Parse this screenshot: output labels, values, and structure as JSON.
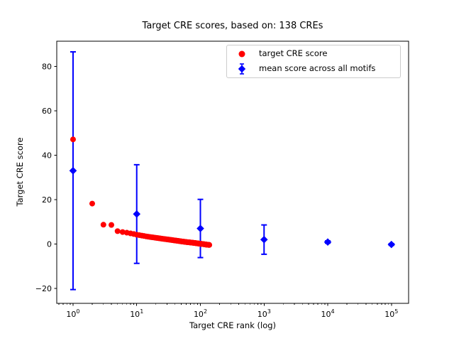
{
  "figure": {
    "title": "Target CRE scores, based on: 138 CREs",
    "xlabel": "Target CRE rank (log)",
    "ylabel": "Target CRE score",
    "background": "#ffffff"
  },
  "colors": {
    "target": "#ff0000",
    "mean": "#0000ff",
    "axis": "#000000",
    "legend_border": "#cccccc"
  },
  "legend": {
    "items": [
      {
        "label": "target CRE score",
        "marker": "circle-icon",
        "color": "#ff0000"
      },
      {
        "label": "mean score across all motifs",
        "marker": "diamond-errorbar-icon",
        "color": "#0000ff"
      }
    ]
  },
  "axes": {
    "x_scale": "log",
    "x_tick_base": "10",
    "x_tick_exponents": [
      0,
      1,
      2,
      3,
      4,
      5
    ],
    "y_ticks": [
      -20,
      0,
      20,
      40,
      60,
      80
    ],
    "xlim_log10": [
      -0.256,
      5.27
    ],
    "ylim": [
      -26.7,
      91.3
    ],
    "grid": false
  },
  "chart_data": {
    "type": "scatter",
    "title": "Target CRE scores, based on: 138 CREs",
    "xlabel": "Target CRE rank (log)",
    "ylabel": "Target CRE score",
    "x_scale": "log",
    "n_points_target_series": 138,
    "legend_position": "upper right",
    "series": [
      {
        "name": "target CRE score",
        "marker": "circle",
        "color": "#ff0000",
        "note": "138 points at ranks 1..138; smooth decaying curve, anchors read from plot",
        "anchors_rank_score": [
          [
            1,
            47.1
          ],
          [
            2,
            18.2
          ],
          [
            3,
            8.7
          ],
          [
            4,
            8.6
          ],
          [
            5,
            5.8
          ],
          [
            6,
            5.4
          ],
          [
            7,
            5.1
          ],
          [
            8,
            4.8
          ],
          [
            9,
            4.5
          ],
          [
            10,
            4.2
          ],
          [
            12,
            3.8
          ],
          [
            15,
            3.3
          ],
          [
            20,
            2.8
          ],
          [
            25,
            2.4
          ],
          [
            30,
            2.1
          ],
          [
            40,
            1.6
          ],
          [
            50,
            1.2
          ],
          [
            60,
            0.9
          ],
          [
            70,
            0.7
          ],
          [
            80,
            0.5
          ],
          [
            90,
            0.3
          ],
          [
            100,
            0.1
          ],
          [
            110,
            0.0
          ],
          [
            120,
            -0.2
          ],
          [
            138,
            -0.4
          ]
        ]
      },
      {
        "name": "mean score across all motifs",
        "marker": "diamond",
        "color": "#0000ff",
        "points": [
          {
            "rank": 1,
            "mean": 33.0,
            "err": 53.5
          },
          {
            "rank": 10,
            "mean": 13.5,
            "err": 22.2
          },
          {
            "rank": 100,
            "mean": 7.0,
            "err": 13.1
          },
          {
            "rank": 1000,
            "mean": 2.0,
            "err": 6.6
          },
          {
            "rank": 10000,
            "mean": 0.9,
            "err": 0.5
          },
          {
            "rank": 100000,
            "mean": -0.2,
            "err": 0.4
          }
        ]
      }
    ]
  }
}
